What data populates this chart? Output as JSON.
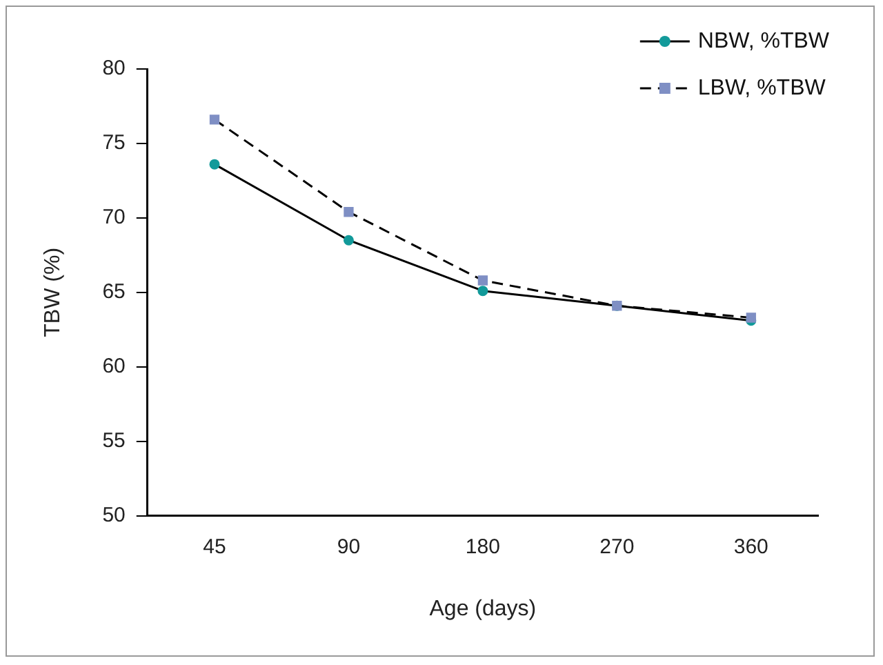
{
  "chart_data": {
    "type": "line",
    "xlabel": "Age (days)",
    "ylabel": "TBW (%)",
    "categories": [
      "45",
      "90",
      "180",
      "270",
      "360"
    ],
    "series": [
      {
        "name": "NBW, %TBW",
        "color": "#129a9a",
        "marker": "circle",
        "line_style": "solid",
        "values": [
          73.6,
          68.5,
          65.1,
          64.1,
          63.1
        ]
      },
      {
        "name": "LBW, %TBW",
        "color": "#7f8fc4",
        "marker": "square",
        "line_style": "dashed",
        "values": [
          76.6,
          70.4,
          65.8,
          64.1,
          63.3
        ]
      }
    ],
    "ylim": [
      50,
      80
    ],
    "yticks": [
      50,
      55,
      60,
      65,
      70,
      75,
      80
    ],
    "legend": "top right"
  }
}
